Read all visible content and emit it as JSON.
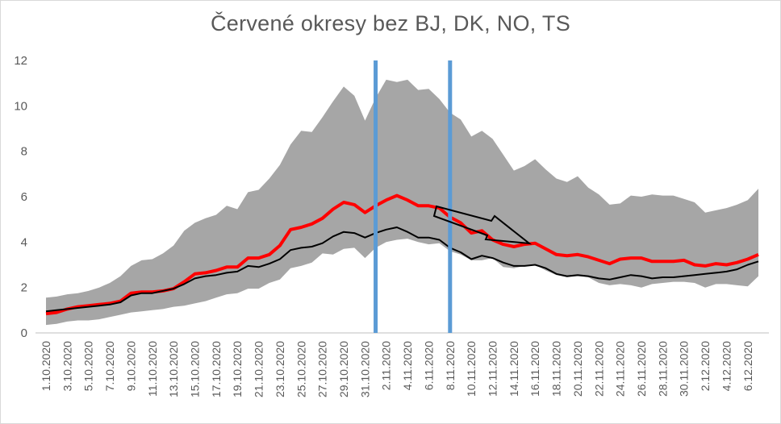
{
  "chart_data": {
    "type": "line",
    "title": "Červené okresy bez BJ, DK, NO, TS",
    "xlabel": "",
    "ylabel": "",
    "ylim": [
      0,
      12
    ],
    "yticks": [
      0,
      2,
      4,
      6,
      8,
      10,
      12
    ],
    "grid": false,
    "legend": "none",
    "x": [
      "1.10.2020",
      "2.10.2020",
      "3.10.2020",
      "4.10.2020",
      "5.10.2020",
      "6.10.2020",
      "7.10.2020",
      "8.10.2020",
      "9.10.2020",
      "10.10.2020",
      "11.10.2020",
      "12.10.2020",
      "13.10.2020",
      "14.10.2020",
      "15.10.2020",
      "16.10.2020",
      "17.10.2020",
      "18.10.2020",
      "19.10.2020",
      "20.10.2020",
      "21.10.2020",
      "22.10.2020",
      "23.10.2020",
      "24.10.2020",
      "25.10.2020",
      "26.10.2020",
      "27.10.2020",
      "28.10.2020",
      "29.10.2020",
      "30.10.2020",
      "31.10.2020",
      "1.11.2020",
      "2.11.2020",
      "3.11.2020",
      "4.11.2020",
      "5.11.2020",
      "6.11.2020",
      "7.11.2020",
      "8.11.2020",
      "9.11.2020",
      "10.11.2020",
      "11.11.2020",
      "12.11.2020",
      "13.11.2020",
      "14.11.2020",
      "15.11.2020",
      "16.11.2020",
      "17.11.2020",
      "18.11.2020",
      "19.11.2020",
      "20.11.2020",
      "21.11.2020",
      "22.11.2020",
      "23.11.2020",
      "24.11.2020",
      "25.11.2020",
      "26.11.2020",
      "27.11.2020",
      "28.11.2020",
      "29.11.2020",
      "30.11.2020",
      "1.12.2020",
      "2.12.2020",
      "3.12.2020",
      "4.12.2020",
      "5.12.2020",
      "6.12.2020",
      "7.12.2020"
    ],
    "xtick_labels": [
      "1.10.2020",
      "3.10.2020",
      "5.10.2020",
      "7.10.2020",
      "9.10.2020",
      "11.10.2020",
      "13.10.2020",
      "15.10.2020",
      "17.10.2020",
      "19.10.2020",
      "21.10.2020",
      "23.10.2020",
      "25.10.2020",
      "27.10.2020",
      "29.10.2020",
      "31.10.2020",
      "2.11.2020",
      "4.11.2020",
      "6.11.2020",
      "8.11.2020",
      "10.11.2020",
      "12.11.2020",
      "14.11.2020",
      "16.11.2020",
      "18.11.2020",
      "20.11.2020",
      "22.11.2020",
      "24.11.2020",
      "26.11.2020",
      "28.11.2020",
      "30.11.2020",
      "2.12.2020",
      "4.12.2020",
      "6.12.2020"
    ],
    "band": {
      "upper": [
        1.55,
        1.6,
        1.7,
        1.75,
        1.85,
        2.0,
        2.2,
        2.5,
        2.95,
        3.2,
        3.25,
        3.5,
        3.85,
        4.5,
        4.85,
        5.05,
        5.2,
        5.6,
        5.45,
        6.2,
        6.3,
        6.8,
        7.4,
        8.3,
        8.9,
        8.85,
        9.5,
        10.2,
        10.85,
        10.45,
        9.35,
        10.35,
        11.15,
        11.05,
        11.15,
        10.7,
        10.75,
        10.3,
        9.7,
        9.4,
        8.65,
        8.9,
        8.55,
        7.85,
        7.15,
        7.35,
        7.65,
        7.2,
        6.8,
        6.65,
        6.9,
        6.4,
        6.1,
        5.65,
        5.7,
        6.05,
        6.0,
        6.1,
        6.05,
        6.05,
        5.9,
        5.75,
        5.3,
        5.4,
        5.5,
        5.65,
        5.85,
        6.35
      ],
      "lower": [
        0.35,
        0.4,
        0.5,
        0.55,
        0.55,
        0.6,
        0.7,
        0.8,
        0.9,
        0.95,
        1.0,
        1.05,
        1.15,
        1.2,
        1.3,
        1.4,
        1.55,
        1.7,
        1.75,
        1.95,
        1.95,
        2.2,
        2.35,
        2.85,
        2.95,
        3.1,
        3.5,
        3.45,
        3.7,
        3.75,
        3.3,
        3.75,
        4.0,
        4.1,
        4.15,
        4.0,
        3.9,
        3.95,
        3.6,
        3.45,
        3.2,
        3.2,
        3.3,
        2.9,
        2.85,
        2.95,
        3.0,
        2.75,
        2.55,
        2.45,
        2.5,
        2.45,
        2.2,
        2.1,
        2.15,
        2.1,
        2.0,
        2.15,
        2.2,
        2.25,
        2.25,
        2.2,
        2.0,
        2.15,
        2.15,
        2.1,
        2.05,
        2.5
      ]
    },
    "series": [
      {
        "color": "#ff0000",
        "values": [
          0.85,
          0.9,
          1.05,
          1.15,
          1.2,
          1.25,
          1.3,
          1.4,
          1.75,
          1.8,
          1.8,
          1.85,
          1.95,
          2.25,
          2.6,
          2.65,
          2.75,
          2.9,
          2.9,
          3.3,
          3.3,
          3.45,
          3.85,
          4.55,
          4.65,
          4.8,
          5.05,
          5.45,
          5.75,
          5.65,
          5.3,
          5.6,
          5.85,
          6.05,
          5.85,
          5.6,
          5.6,
          5.5,
          5.1,
          4.85,
          4.4,
          4.5,
          4.1,
          3.9,
          3.8,
          3.9,
          3.95,
          3.7,
          3.45,
          3.4,
          3.45,
          3.35,
          3.2,
          3.05,
          3.25,
          3.3,
          3.3,
          3.15,
          3.15,
          3.15,
          3.2,
          3.0,
          2.95,
          3.05,
          3.0,
          3.1,
          3.25,
          3.45
        ]
      },
      {
        "color": "#000000",
        "values": [
          0.95,
          1.0,
          1.05,
          1.1,
          1.15,
          1.2,
          1.25,
          1.35,
          1.65,
          1.75,
          1.75,
          1.85,
          1.95,
          2.15,
          2.4,
          2.5,
          2.55,
          2.65,
          2.7,
          2.95,
          2.9,
          3.05,
          3.25,
          3.65,
          3.75,
          3.8,
          3.95,
          4.25,
          4.45,
          4.4,
          4.2,
          4.4,
          4.55,
          4.65,
          4.45,
          4.2,
          4.2,
          4.1,
          3.75,
          3.55,
          3.25,
          3.4,
          3.3,
          3.1,
          2.95,
          2.95,
          3.0,
          2.85,
          2.6,
          2.5,
          2.55,
          2.5,
          2.4,
          2.35,
          2.45,
          2.55,
          2.5,
          2.4,
          2.45,
          2.45,
          2.5,
          2.55,
          2.6,
          2.65,
          2.7,
          2.8,
          3.0,
          3.15
        ]
      }
    ],
    "vertical_markers": [
      "1.11.2020",
      "8.11.2020"
    ],
    "colors": {
      "band": "#a6a6a6",
      "marker": "#5b9bd5",
      "axis": "#bfbfbf",
      "text": "#595959",
      "annotation": "#000000"
    }
  }
}
